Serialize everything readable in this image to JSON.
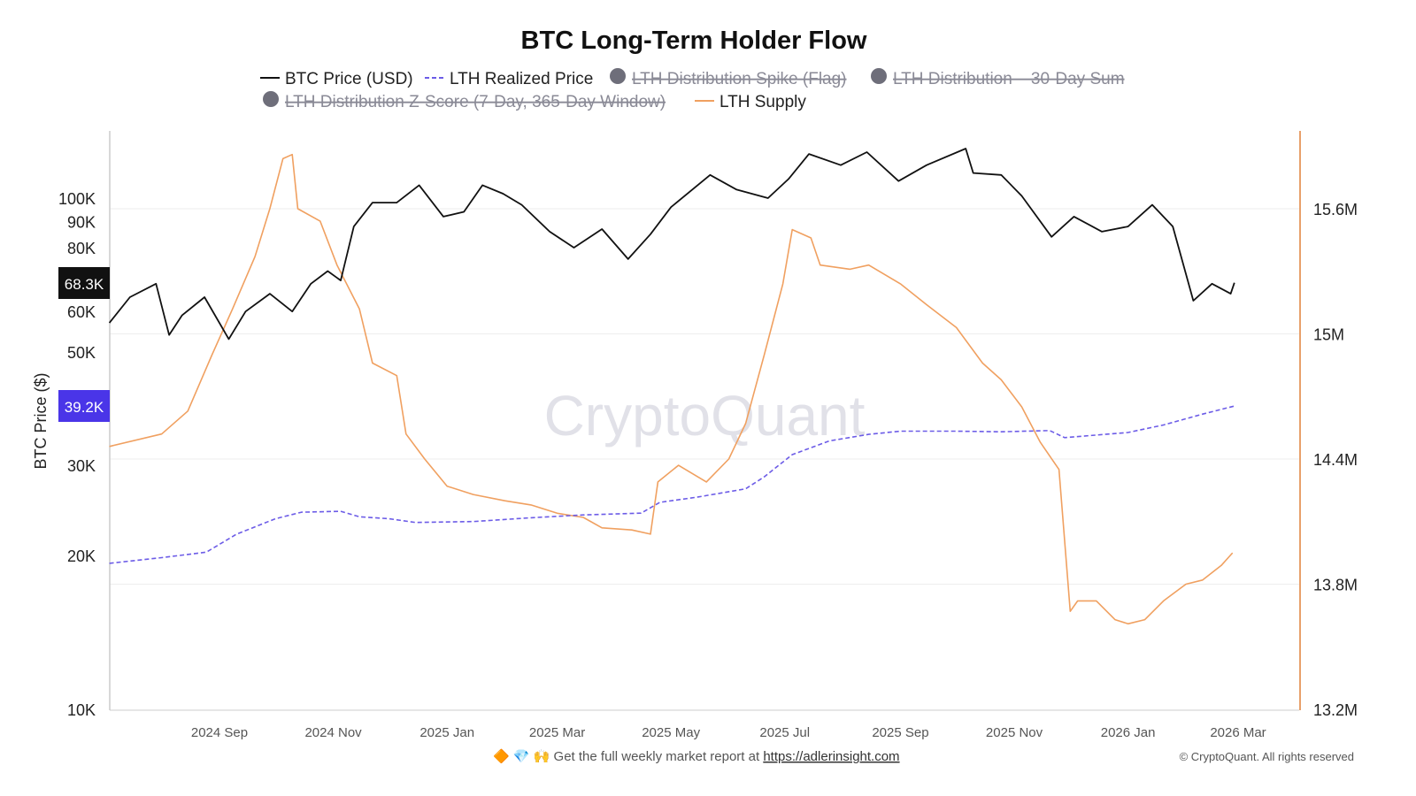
{
  "chart_data": {
    "type": "line",
    "title": "BTC Long-Term Holder Flow",
    "watermark": "CryptoQuant",
    "ylabel": "BTC Price ($)",
    "y_scale": "log",
    "ylim": [
      10000,
      160000
    ],
    "y_ticks": [
      {
        "v": 10000,
        "label": "10K"
      },
      {
        "v": 20000,
        "label": "20K"
      },
      {
        "v": 30000,
        "label": "30K"
      },
      {
        "v": 50000,
        "label": "50K"
      },
      {
        "v": 60000,
        "label": "60K"
      },
      {
        "v": 80000,
        "label": "80K"
      },
      {
        "v": 90000,
        "label": "90K"
      },
      {
        "v": 100000,
        "label": "100K"
      }
    ],
    "y2lim": [
      13.2,
      15.97
    ],
    "y2_ticks": [
      {
        "v": 13.2,
        "label": "13.2M"
      },
      {
        "v": 13.8,
        "label": "13.8M"
      },
      {
        "v": 14.4,
        "label": "14.4M"
      },
      {
        "v": 15.0,
        "label": "15M"
      },
      {
        "v": 15.6,
        "label": "15.6M"
      }
    ],
    "x_ticks": [
      {
        "d": "2024-09-01",
        "label": "2024 Sep"
      },
      {
        "d": "2024-11-01",
        "label": "2024 Nov"
      },
      {
        "d": "2025-01-01",
        "label": "2025 Jan"
      },
      {
        "d": "2025-03-01",
        "label": "2025 Mar"
      },
      {
        "d": "2025-05-01",
        "label": "2025 May"
      },
      {
        "d": "2025-07-01",
        "label": "2025 Jul"
      },
      {
        "d": "2025-09-01",
        "label": "2025 Sep"
      },
      {
        "d": "2025-11-01",
        "label": "2025 Nov"
      },
      {
        "d": "2026-01-01",
        "label": "2026 Jan"
      },
      {
        "d": "2026-03-01",
        "label": "2026 Mar"
      }
    ],
    "xlim": [
      "2024-07-03",
      "2026-03-20"
    ],
    "grid": "horizontal",
    "legend_position": "top",
    "legend": [
      {
        "label": "BTC Price (USD)",
        "style": "solid",
        "color": "#111111",
        "hidden": false
      },
      {
        "label": "LTH Realized Price",
        "style": "dashed",
        "color": "#6c5ce7",
        "hidden": false
      },
      {
        "label": "LTH Distribution Spike (Flag)",
        "style": "dot",
        "color": "#6e6e7a",
        "hidden": true
      },
      {
        "label": "LTH Distribution – 30-Day Sum",
        "style": "dot",
        "color": "#6e6e7a",
        "hidden": true
      },
      {
        "label": "LTH Distribution Z-Score (7-Day, 365-Day Window)",
        "style": "dot",
        "color": "#6e6e7a",
        "hidden": true
      },
      {
        "label": "LTH Supply",
        "style": "solid",
        "color": "#f0a060",
        "hidden": false
      }
    ],
    "current_labels": {
      "btc_price": "68.3K",
      "realized_price": "39.2K"
    },
    "series": [
      {
        "name": "BTC Price (USD)",
        "axis": "left",
        "color": "#111111",
        "points": [
          [
            "2024-07-04",
            57000
          ],
          [
            "2024-07-15",
            64000
          ],
          [
            "2024-07-29",
            68000
          ],
          [
            "2024-08-05",
            54000
          ],
          [
            "2024-08-12",
            59000
          ],
          [
            "2024-08-24",
            64000
          ],
          [
            "2024-09-06",
            53000
          ],
          [
            "2024-09-15",
            60000
          ],
          [
            "2024-09-28",
            65000
          ],
          [
            "2024-10-10",
            60000
          ],
          [
            "2024-10-20",
            68000
          ],
          [
            "2024-10-29",
            72000
          ],
          [
            "2024-11-05",
            69000
          ],
          [
            "2024-11-12",
            88000
          ],
          [
            "2024-11-22",
            98000
          ],
          [
            "2024-12-05",
            98000
          ],
          [
            "2024-12-17",
            106000
          ],
          [
            "2024-12-30",
            92000
          ],
          [
            "2025-01-10",
            94000
          ],
          [
            "2025-01-20",
            106000
          ],
          [
            "2025-01-31",
            102000
          ],
          [
            "2025-02-10",
            97000
          ],
          [
            "2025-02-25",
            86000
          ],
          [
            "2025-03-10",
            80000
          ],
          [
            "2025-03-25",
            87000
          ],
          [
            "2025-04-08",
            76000
          ],
          [
            "2025-04-20",
            85000
          ],
          [
            "2025-05-01",
            96000
          ],
          [
            "2025-05-22",
            111000
          ],
          [
            "2025-06-05",
            104000
          ],
          [
            "2025-06-22",
            100000
          ],
          [
            "2025-07-03",
            109000
          ],
          [
            "2025-07-14",
            122000
          ],
          [
            "2025-07-31",
            116000
          ],
          [
            "2025-08-14",
            123000
          ],
          [
            "2025-08-31",
            108000
          ],
          [
            "2025-09-15",
            116000
          ],
          [
            "2025-10-06",
            125000
          ],
          [
            "2025-10-10",
            112000
          ],
          [
            "2025-10-25",
            111000
          ],
          [
            "2025-11-05",
            101000
          ],
          [
            "2025-11-21",
            84000
          ],
          [
            "2025-12-03",
            92000
          ],
          [
            "2025-12-18",
            86000
          ],
          [
            "2026-01-01",
            88000
          ],
          [
            "2026-01-14",
            97000
          ],
          [
            "2026-01-25",
            88000
          ],
          [
            "2026-02-05",
            63000
          ],
          [
            "2026-02-15",
            68000
          ],
          [
            "2026-02-25",
            65000
          ],
          [
            "2026-02-27",
            68300
          ]
        ]
      },
      {
        "name": "LTH Realized Price",
        "axis": "left",
        "color": "#6c5ce7",
        "points": [
          [
            "2024-07-04",
            19300
          ],
          [
            "2024-08-01",
            19800
          ],
          [
            "2024-08-25",
            20300
          ],
          [
            "2024-09-10",
            22000
          ],
          [
            "2024-10-01",
            23600
          ],
          [
            "2024-10-15",
            24300
          ],
          [
            "2024-11-05",
            24400
          ],
          [
            "2024-11-15",
            23800
          ],
          [
            "2024-12-01",
            23600
          ],
          [
            "2024-12-15",
            23200
          ],
          [
            "2025-01-15",
            23300
          ],
          [
            "2025-02-15",
            23700
          ],
          [
            "2025-03-15",
            24000
          ],
          [
            "2025-04-15",
            24200
          ],
          [
            "2025-04-25",
            25400
          ],
          [
            "2025-05-15",
            26000
          ],
          [
            "2025-06-10",
            27000
          ],
          [
            "2025-06-20",
            28500
          ],
          [
            "2025-07-05",
            31500
          ],
          [
            "2025-07-25",
            33500
          ],
          [
            "2025-08-15",
            34500
          ],
          [
            "2025-09-01",
            35000
          ],
          [
            "2025-10-01",
            35000
          ],
          [
            "2025-10-25",
            34900
          ],
          [
            "2025-11-20",
            35100
          ],
          [
            "2025-11-28",
            34000
          ],
          [
            "2025-12-15",
            34400
          ],
          [
            "2026-01-01",
            34800
          ],
          [
            "2026-01-20",
            36000
          ],
          [
            "2026-02-10",
            37800
          ],
          [
            "2026-02-27",
            39200
          ]
        ]
      },
      {
        "name": "LTH Supply",
        "axis": "right",
        "unit": "M",
        "color": "#f0a060",
        "points": [
          [
            "2024-07-04",
            14.46
          ],
          [
            "2024-08-01",
            14.52
          ],
          [
            "2024-08-15",
            14.63
          ],
          [
            "2024-08-28",
            14.9
          ],
          [
            "2024-09-08",
            15.12
          ],
          [
            "2024-09-20",
            15.37
          ],
          [
            "2024-09-28",
            15.6
          ],
          [
            "2024-10-05",
            15.84
          ],
          [
            "2024-10-10",
            15.86
          ],
          [
            "2024-10-13",
            15.6
          ],
          [
            "2024-10-25",
            15.54
          ],
          [
            "2024-11-03",
            15.33
          ],
          [
            "2024-11-15",
            15.12
          ],
          [
            "2024-11-22",
            14.86
          ],
          [
            "2024-12-05",
            14.8
          ],
          [
            "2024-12-10",
            14.52
          ],
          [
            "2024-12-20",
            14.4
          ],
          [
            "2025-01-01",
            14.27
          ],
          [
            "2025-01-15",
            14.23
          ],
          [
            "2025-02-01",
            14.2
          ],
          [
            "2025-02-15",
            14.18
          ],
          [
            "2025-03-01",
            14.14
          ],
          [
            "2025-03-15",
            14.12
          ],
          [
            "2025-03-25",
            14.07
          ],
          [
            "2025-04-10",
            14.06
          ],
          [
            "2025-04-20",
            14.04
          ],
          [
            "2025-04-24",
            14.29
          ],
          [
            "2025-05-05",
            14.37
          ],
          [
            "2025-05-20",
            14.29
          ],
          [
            "2025-06-01",
            14.4
          ],
          [
            "2025-06-10",
            14.57
          ],
          [
            "2025-06-20",
            14.9
          ],
          [
            "2025-06-30",
            15.24
          ],
          [
            "2025-07-05",
            15.5
          ],
          [
            "2025-07-15",
            15.46
          ],
          [
            "2025-07-20",
            15.33
          ],
          [
            "2025-08-05",
            15.31
          ],
          [
            "2025-08-15",
            15.33
          ],
          [
            "2025-09-01",
            15.24
          ],
          [
            "2025-09-15",
            15.14
          ],
          [
            "2025-10-01",
            15.03
          ],
          [
            "2025-10-15",
            14.86
          ],
          [
            "2025-10-25",
            14.78
          ],
          [
            "2025-11-05",
            14.65
          ],
          [
            "2025-11-15",
            14.48
          ],
          [
            "2025-11-25",
            14.35
          ],
          [
            "2025-12-01",
            13.67
          ],
          [
            "2025-12-05",
            13.72
          ],
          [
            "2025-12-15",
            13.72
          ],
          [
            "2025-12-25",
            13.63
          ],
          [
            "2026-01-01",
            13.61
          ],
          [
            "2026-01-10",
            13.63
          ],
          [
            "2026-01-20",
            13.72
          ],
          [
            "2026-02-01",
            13.8
          ],
          [
            "2026-02-10",
            13.82
          ],
          [
            "2026-02-20",
            13.89
          ],
          [
            "2026-02-26",
            13.95
          ]
        ]
      }
    ]
  },
  "footer": {
    "emojis": "🔶 💎 🙌",
    "text": "Get the full weekly market report at ",
    "link": "https://adlerinsight.com",
    "copyright": "© CryptoQuant. All rights reserved"
  }
}
